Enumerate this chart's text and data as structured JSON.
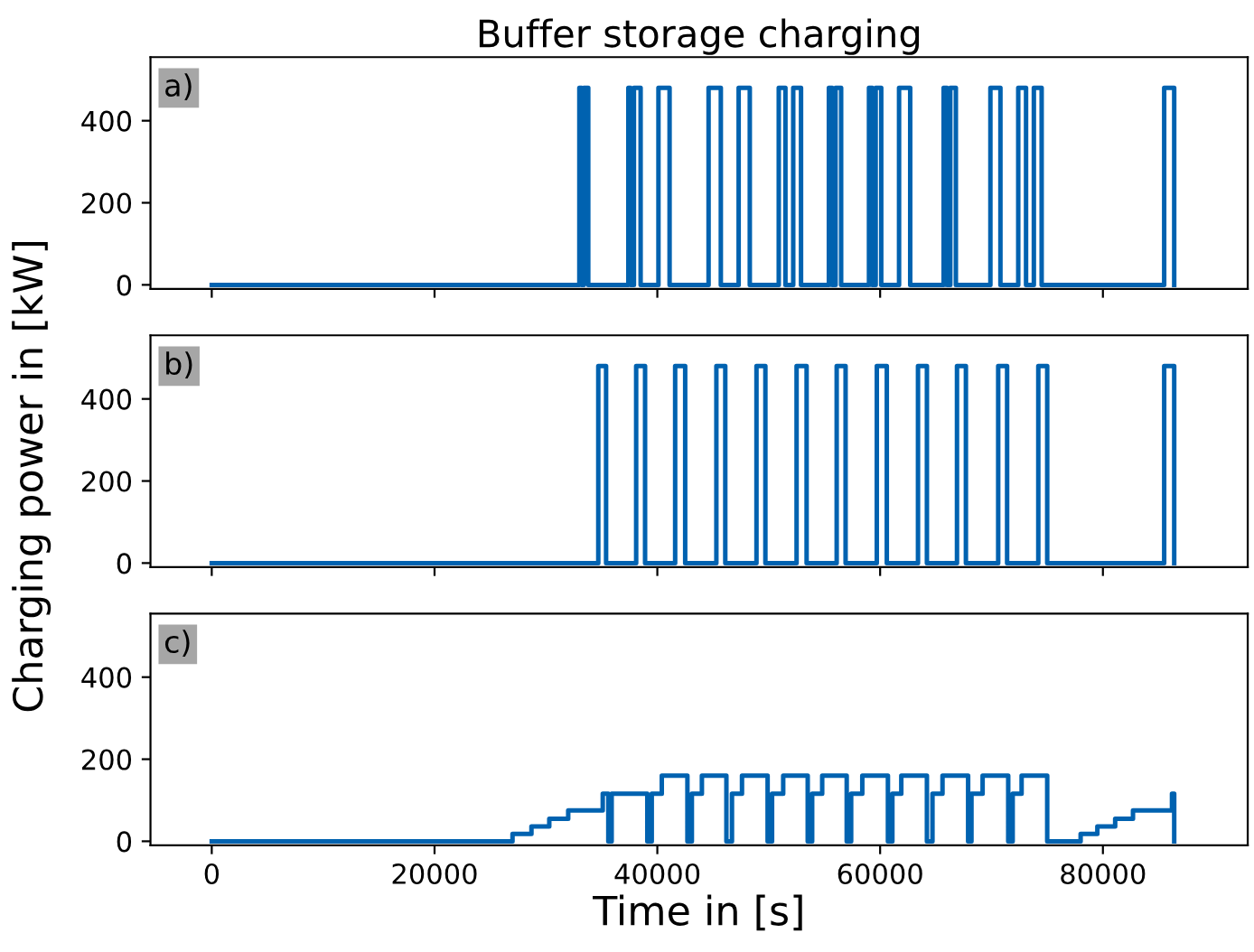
{
  "chart_data": [
    {
      "type": "step",
      "title": "Buffer storage charging",
      "annotations": [
        "a)"
      ],
      "tick_labels": "y",
      "xlim": [
        -5500,
        93000
      ],
      "ylim": [
        -10,
        555
      ],
      "yticks": [
        0,
        200,
        400
      ],
      "xticks": [
        0,
        20000,
        40000,
        60000,
        80000
      ],
      "series": [
        {
          "color": "#0062b0",
          "x": [
            0,
            33000,
            33200,
            33400,
            33800,
            37400,
            37600,
            37900,
            38500,
            40100,
            41100,
            44600,
            45700,
            47300,
            48300,
            50900,
            51500,
            52200,
            52900,
            55400,
            55700,
            56000,
            56500,
            59000,
            59300,
            59600,
            60100,
            61700,
            62700,
            65700,
            66000,
            66300,
            66800,
            69900,
            70800,
            72400,
            73100,
            73800,
            74500,
            85500,
            86400
          ],
          "values": [
            0,
            480,
            0,
            480,
            0,
            480,
            0,
            480,
            0,
            480,
            0,
            480,
            0,
            480,
            0,
            480,
            0,
            480,
            0,
            480,
            0,
            480,
            0,
            480,
            0,
            480,
            0,
            480,
            0,
            480,
            0,
            480,
            0,
            480,
            0,
            480,
            0,
            480,
            0,
            480,
            0
          ]
        }
      ]
    },
    {
      "type": "step",
      "ylabel": "Charging power in [kW]",
      "annotations": [
        "b)"
      ],
      "tick_labels": "y",
      "xlim": [
        -5500,
        93000
      ],
      "ylim": [
        -10,
        555
      ],
      "yticks": [
        0,
        200,
        400
      ],
      "xticks": [
        0,
        20000,
        40000,
        60000,
        80000
      ],
      "series": [
        {
          "color": "#0062b0",
          "x": [
            0,
            34700,
            35400,
            38100,
            38900,
            41600,
            42500,
            45300,
            46100,
            48900,
            49700,
            52500,
            53400,
            56100,
            56900,
            59700,
            60600,
            63400,
            64200,
            66900,
            67700,
            70600,
            71400,
            74200,
            75000,
            85500,
            86400
          ],
          "values": [
            0,
            480,
            0,
            480,
            0,
            480,
            0,
            480,
            0,
            480,
            0,
            480,
            0,
            480,
            0,
            480,
            0,
            480,
            0,
            480,
            0,
            480,
            0,
            480,
            0,
            480,
            0
          ]
        }
      ]
    },
    {
      "type": "step",
      "xlabel": "Time in [s]",
      "annotations": [
        "c)"
      ],
      "xlim": [
        -5500,
        93000
      ],
      "ylim": [
        -10,
        555
      ],
      "yticks": [
        0,
        200,
        400
      ],
      "xticks": [
        0,
        20000,
        40000,
        60000,
        80000
      ],
      "series": [
        {
          "color": "#0062b0",
          "x": [
            0,
            27000,
            28700,
            30300,
            32000,
            35100,
            35600,
            35900,
            39100,
            39500,
            40400,
            42700,
            43100,
            44000,
            46200,
            46700,
            47600,
            49900,
            50300,
            51300,
            53500,
            53900,
            54800,
            57000,
            57400,
            58400,
            60700,
            61100,
            61900,
            64200,
            64700,
            65600,
            67900,
            68200,
            69200,
            71500,
            71900,
            72700,
            75000,
            78000,
            79500,
            81100,
            82700,
            86200,
            86400
          ],
          "values": [
            0,
            18,
            36,
            55,
            75,
            116,
            0,
            116,
            0,
            116,
            160,
            0,
            116,
            160,
            0,
            116,
            160,
            0,
            116,
            160,
            0,
            116,
            160,
            0,
            116,
            160,
            0,
            116,
            160,
            0,
            116,
            160,
            0,
            116,
            160,
            0,
            116,
            160,
            0,
            18,
            36,
            55,
            75,
            116,
            0
          ]
        }
      ]
    }
  ]
}
